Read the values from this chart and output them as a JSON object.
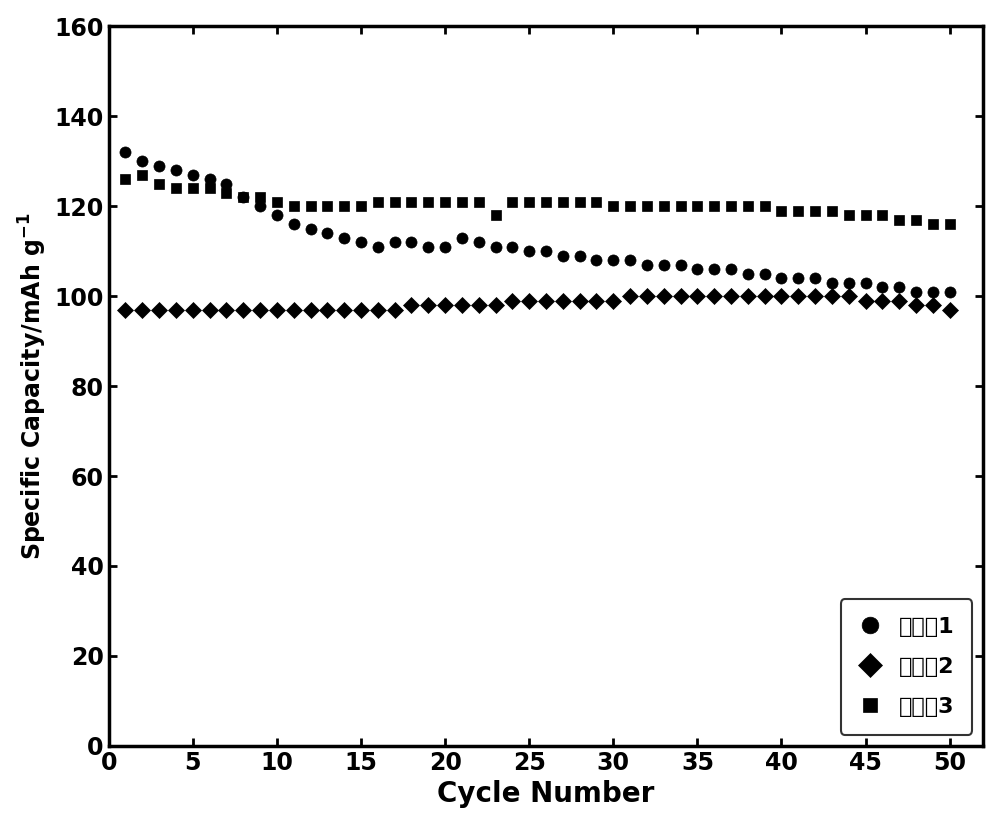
{
  "title": "",
  "xlabel": "Cycle Number",
  "ylabel": "Specific Capacity/mAh g$^{-1}$",
  "xlim": [
    0,
    52
  ],
  "ylim": [
    0,
    160
  ],
  "xticks": [
    0,
    5,
    10,
    15,
    20,
    25,
    30,
    35,
    40,
    45,
    50
  ],
  "yticks": [
    0,
    20,
    40,
    60,
    80,
    100,
    120,
    140,
    160
  ],
  "legend_labels": [
    "实施例1",
    "实施例2",
    "实施例3"
  ],
  "series1_x": [
    1,
    2,
    3,
    4,
    5,
    6,
    7,
    8,
    9,
    10,
    11,
    12,
    13,
    14,
    15,
    16,
    17,
    18,
    19,
    20,
    21,
    22,
    23,
    24,
    25,
    26,
    27,
    28,
    29,
    30,
    31,
    32,
    33,
    34,
    35,
    36,
    37,
    38,
    39,
    40,
    41,
    42,
    43,
    44,
    45,
    46,
    47,
    48,
    49,
    50
  ],
  "series1_y": [
    132,
    130,
    129,
    128,
    127,
    126,
    125,
    122,
    120,
    118,
    116,
    115,
    114,
    113,
    112,
    111,
    112,
    112,
    111,
    111,
    113,
    112,
    111,
    111,
    110,
    110,
    109,
    109,
    108,
    108,
    108,
    107,
    107,
    107,
    106,
    106,
    106,
    105,
    105,
    104,
    104,
    104,
    103,
    103,
    103,
    102,
    102,
    101,
    101,
    101
  ],
  "series2_x": [
    1,
    2,
    3,
    4,
    5,
    6,
    7,
    8,
    9,
    10,
    11,
    12,
    13,
    14,
    15,
    16,
    17,
    18,
    19,
    20,
    21,
    22,
    23,
    24,
    25,
    26,
    27,
    28,
    29,
    30,
    31,
    32,
    33,
    34,
    35,
    36,
    37,
    38,
    39,
    40,
    41,
    42,
    43,
    44,
    45,
    46,
    47,
    48,
    49,
    50
  ],
  "series2_y": [
    97,
    97,
    97,
    97,
    97,
    97,
    97,
    97,
    97,
    97,
    97,
    97,
    97,
    97,
    97,
    97,
    97,
    98,
    98,
    98,
    98,
    98,
    98,
    99,
    99,
    99,
    99,
    99,
    99,
    99,
    100,
    100,
    100,
    100,
    100,
    100,
    100,
    100,
    100,
    100,
    100,
    100,
    100,
    100,
    99,
    99,
    99,
    98,
    98,
    97
  ],
  "series3_x": [
    1,
    2,
    3,
    4,
    5,
    6,
    7,
    8,
    9,
    10,
    11,
    12,
    13,
    14,
    15,
    16,
    17,
    18,
    19,
    20,
    21,
    22,
    23,
    24,
    25,
    26,
    27,
    28,
    29,
    30,
    31,
    32,
    33,
    34,
    35,
    36,
    37,
    38,
    39,
    40,
    41,
    42,
    43,
    44,
    45,
    46,
    47,
    48,
    49,
    50
  ],
  "series3_y": [
    126,
    127,
    125,
    124,
    124,
    124,
    123,
    122,
    122,
    121,
    120,
    120,
    120,
    120,
    120,
    121,
    121,
    121,
    121,
    121,
    121,
    121,
    118,
    121,
    121,
    121,
    121,
    121,
    121,
    120,
    120,
    120,
    120,
    120,
    120,
    120,
    120,
    120,
    120,
    119,
    119,
    119,
    119,
    118,
    118,
    118,
    117,
    117,
    116,
    116
  ],
  "color": "#000000",
  "marker1": "o",
  "marker2": "D",
  "marker3": "s",
  "markersize1": 8,
  "markersize2": 8,
  "markersize3": 7,
  "xlabel_fontsize": 20,
  "ylabel_fontsize": 17,
  "tick_fontsize": 17,
  "legend_fontsize": 16,
  "background_color": "#ffffff",
  "border_color": "#000000"
}
